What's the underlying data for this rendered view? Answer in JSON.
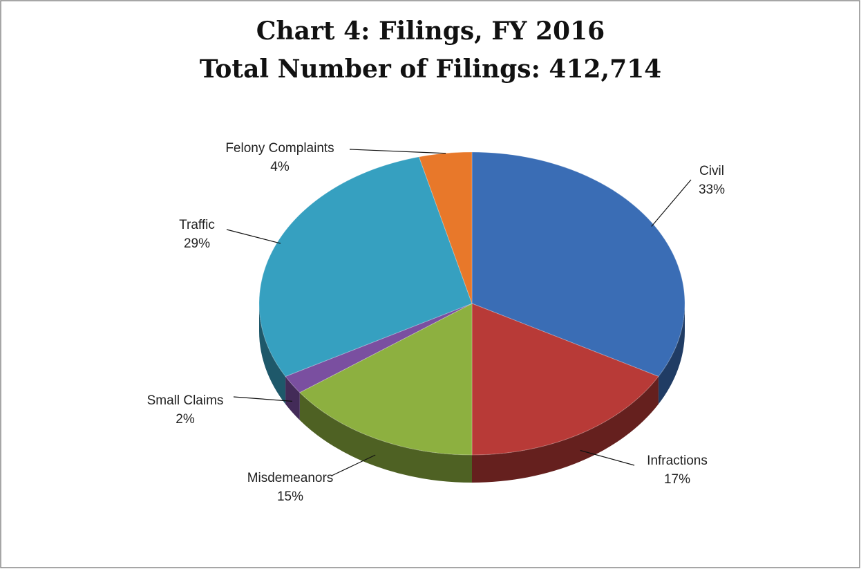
{
  "chart_data": {
    "type": "pie",
    "title": "Chart 4: Filings, FY 2016",
    "subtitle": "Total Number of Filings: 412,714",
    "categories": [
      "Civil",
      "Infractions",
      "Misdemeanors",
      "Small Claims",
      "Traffic",
      "Felony Complaints"
    ],
    "values": [
      33,
      17,
      15,
      2,
      29,
      4
    ],
    "value_labels": [
      "33%",
      "17%",
      "15%",
      "2%",
      "29%",
      "4%"
    ],
    "colors": [
      "#3a6db5",
      "#b83a37",
      "#8db040",
      "#7a4fa0",
      "#36a0c0",
      "#e8782a"
    ]
  }
}
